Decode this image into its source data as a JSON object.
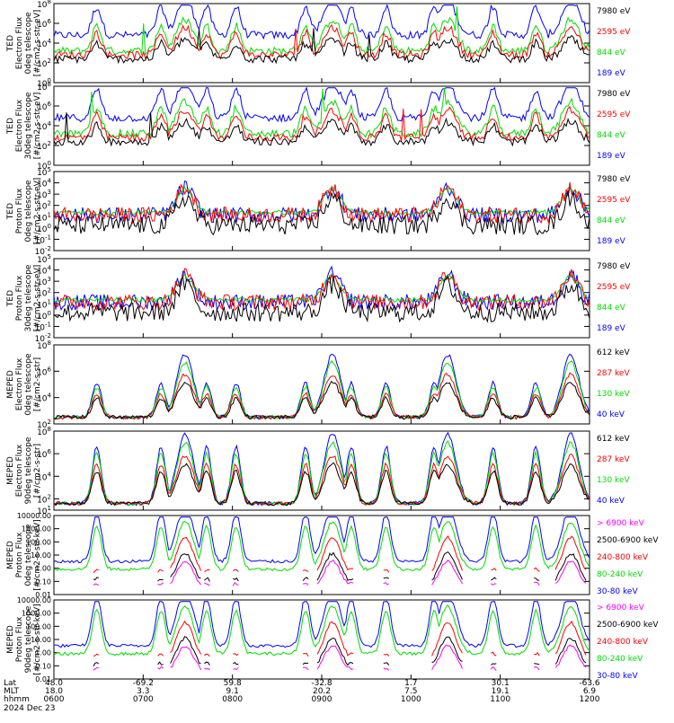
{
  "footer": {
    "row_labels": [
      "Lat",
      "MLT",
      "hhmm"
    ],
    "date": "2024 Dec 23",
    "ticks": [
      {
        "lat": "48.0",
        "mlt": "18.0",
        "hhmm": "0600"
      },
      {
        "lat": "-69.2",
        "mlt": "3.3",
        "hhmm": "0700"
      },
      {
        "lat": "59.8",
        "mlt": "9.1",
        "hhmm": "0800"
      },
      {
        "lat": "-32.8",
        "mlt": "20.2",
        "hhmm": "0900"
      },
      {
        "lat": "1.7",
        "mlt": "7.5",
        "hhmm": "1000"
      },
      {
        "lat": "30.1",
        "mlt": "19.1",
        "hhmm": "1100"
      },
      {
        "lat": "-63.6",
        "mlt": "6.9",
        "hhmm": "1200"
      }
    ]
  },
  "colors": {
    "black": "#000000",
    "red": "#ff0000",
    "green": "#00dd00",
    "blue": "#0000ff",
    "magenta": "#ff00ff"
  },
  "chart_data": [
    {
      "type": "line",
      "ylabel": [
        "TED",
        "Electron Flux",
        "0deg telescope",
        "[#/cm2-s-str-eV]"
      ],
      "ylog": true,
      "ylim": [
        1,
        100000000
      ],
      "yticks": [
        {
          "v": 1,
          "l": "10^0"
        },
        {
          "v": 100,
          "l": "10^2"
        },
        {
          "v": 10000,
          "l": "10^4"
        },
        {
          "v": 1000000,
          "l": "10^6"
        },
        {
          "v": 100000000,
          "l": "10^8"
        }
      ],
      "legend": [
        {
          "name": "7980 eV",
          "color": "black"
        },
        {
          "name": "2595 eV",
          "color": "red"
        },
        {
          "name": "844 eV",
          "color": "green"
        },
        {
          "name": "189 eV",
          "color": "blue"
        }
      ]
    },
    {
      "type": "line",
      "ylabel": [
        "TED",
        "Electron Flux",
        "30deg telescope",
        "[#/cm2-s-str-eV]"
      ],
      "ylog": true,
      "ylim": [
        1,
        100000000
      ],
      "yticks": [
        {
          "v": 1,
          "l": "10^0"
        },
        {
          "v": 100,
          "l": "10^2"
        },
        {
          "v": 10000,
          "l": "10^4"
        },
        {
          "v": 1000000,
          "l": "10^6"
        },
        {
          "v": 100000000,
          "l": "10^8"
        }
      ],
      "legend": [
        {
          "name": "7980 eV",
          "color": "black"
        },
        {
          "name": "2595 eV",
          "color": "red"
        },
        {
          "name": "844 eV",
          "color": "green"
        },
        {
          "name": "189 eV",
          "color": "blue"
        }
      ]
    },
    {
      "type": "line",
      "ylabel": [
        "TED",
        "Proton Flux",
        "0deg telescope",
        "[#/cm2-s-str-eV]"
      ],
      "ylog": true,
      "ylim": [
        0.01,
        100000
      ],
      "yticks": [
        {
          "v": 0.01,
          "l": "10^-2"
        },
        {
          "v": 0.1,
          "l": "10^-1"
        },
        {
          "v": 1,
          "l": "10^0"
        },
        {
          "v": 10,
          "l": "10^1"
        },
        {
          "v": 100,
          "l": "10^2"
        },
        {
          "v": 1000,
          "l": "10^3"
        },
        {
          "v": 10000,
          "l": "10^4"
        },
        {
          "v": 100000,
          "l": "10^5"
        }
      ],
      "legend": [
        {
          "name": "7980 eV",
          "color": "black"
        },
        {
          "name": "2595 eV",
          "color": "red"
        },
        {
          "name": "844 eV",
          "color": "green"
        },
        {
          "name": "189 eV",
          "color": "blue"
        }
      ]
    },
    {
      "type": "line",
      "ylabel": [
        "TED",
        "Proton Flux",
        "30deg telescope",
        "[#/cm2-s-str-eV]"
      ],
      "ylog": true,
      "ylim": [
        0.01,
        100000
      ],
      "yticks": [
        {
          "v": 0.01,
          "l": "10^-2"
        },
        {
          "v": 0.1,
          "l": "10^-1"
        },
        {
          "v": 1,
          "l": "10^0"
        },
        {
          "v": 10,
          "l": "10^1"
        },
        {
          "v": 100,
          "l": "10^2"
        },
        {
          "v": 1000,
          "l": "10^3"
        },
        {
          "v": 10000,
          "l": "10^4"
        },
        {
          "v": 100000,
          "l": "10^5"
        }
      ],
      "legend": [
        {
          "name": "7980 eV",
          "color": "black"
        },
        {
          "name": "2595 eV",
          "color": "red"
        },
        {
          "name": "844 eV",
          "color": "green"
        },
        {
          "name": "189 eV",
          "color": "blue"
        }
      ]
    },
    {
      "type": "line",
      "ylabel": [
        "MEPED",
        "Electron Flux",
        "0deg telescope",
        "[#/cm2-s-str]"
      ],
      "ylog": true,
      "ylim": [
        100,
        100000000
      ],
      "yticks": [
        {
          "v": 100,
          "l": "10^2"
        },
        {
          "v": 10000,
          "l": "10^4"
        },
        {
          "v": 1000000,
          "l": "10^6"
        },
        {
          "v": 100000000,
          "l": "10^8"
        }
      ],
      "legend": [
        {
          "name": "612 keV",
          "color": "black"
        },
        {
          "name": "287 keV",
          "color": "red"
        },
        {
          "name": "130 keV",
          "color": "green"
        },
        {
          "name": "40 keV",
          "color": "blue"
        }
      ]
    },
    {
      "type": "line",
      "ylabel": [
        "MEPED",
        "Electron Flux",
        "90deg telescope",
        "[#/cm2-s-str]"
      ],
      "ylog": true,
      "ylim": [
        10,
        100000000
      ],
      "yticks": [
        {
          "v": 10,
          "l": "10^1"
        },
        {
          "v": 100,
          "l": "10^2"
        },
        {
          "v": 10000,
          "l": "10^4"
        },
        {
          "v": 1000000,
          "l": "10^6"
        },
        {
          "v": 100000000,
          "l": "10^8"
        }
      ],
      "legend": [
        {
          "name": "612 keV",
          "color": "black"
        },
        {
          "name": "287 keV",
          "color": "red"
        },
        {
          "name": "130 keV",
          "color": "green"
        },
        {
          "name": "40 keV",
          "color": "blue"
        }
      ]
    },
    {
      "type": "line",
      "ylabel": [
        "MEPED",
        "Proton Flux",
        "0deg telescope",
        "[#/cm2-s-str-keV]"
      ],
      "ylog": true,
      "ylim": [
        0.01,
        10000
      ],
      "yticks": [
        {
          "v": 0.01,
          "l": "0.01"
        },
        {
          "v": 0.1,
          "l": "0.10"
        },
        {
          "v": 1,
          "l": "1.00"
        },
        {
          "v": 10,
          "l": "10.00"
        },
        {
          "v": 100,
          "l": "100.00"
        },
        {
          "v": 1000,
          "l": "1000.00"
        },
        {
          "v": 10000,
          "l": "10000.00"
        }
      ],
      "legend": [
        {
          "name": "> 6900 keV",
          "color": "magenta"
        },
        {
          "name": "2500-6900 keV",
          "color": "black"
        },
        {
          "name": "240-800 keV",
          "color": "red"
        },
        {
          "name": "80-240 keV",
          "color": "green"
        },
        {
          "name": "30-80 keV",
          "color": "blue"
        }
      ]
    },
    {
      "type": "line",
      "ylabel": [
        "MEPED",
        "Proton Flux",
        "90deg telescope",
        "[#/cm2-s-str-keV]"
      ],
      "ylog": true,
      "ylim": [
        0.01,
        10000
      ],
      "yticks": [
        {
          "v": 0.01,
          "l": "0.01"
        },
        {
          "v": 0.1,
          "l": "0.10"
        },
        {
          "v": 1,
          "l": "1.00"
        },
        {
          "v": 10,
          "l": "10.00"
        },
        {
          "v": 100,
          "l": "100.00"
        },
        {
          "v": 1000,
          "l": "1000.00"
        },
        {
          "v": 10000,
          "l": "10000.00"
        }
      ],
      "legend": [
        {
          "name": "> 6900 keV",
          "color": "magenta"
        },
        {
          "name": "2500-6900 keV",
          "color": "black"
        },
        {
          "name": "240-800 keV",
          "color": "red"
        },
        {
          "name": "80-240 keV",
          "color": "green"
        },
        {
          "name": "30-80 keV",
          "color": "blue"
        }
      ]
    }
  ]
}
